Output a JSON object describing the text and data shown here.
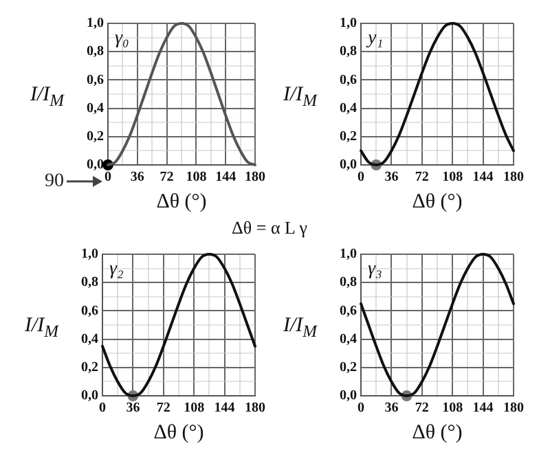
{
  "chart_data": [
    {
      "type": "line",
      "title": "γ₀",
      "xlabel": "Δθ (°)",
      "ylabel": "I/I$_{M}$",
      "x": [
        0,
        9,
        18,
        27,
        36,
        45,
        54,
        63,
        72,
        81,
        90,
        99,
        108,
        117,
        126,
        135,
        144,
        153,
        162,
        171,
        180
      ],
      "xlim": [
        0,
        180
      ],
      "ylim": [
        0,
        1
      ],
      "xticks": [
        0,
        {
          "value": 18,
          "label": null
        },
        36,
        {
          "value": 54,
          "label": null
        },
        72,
        {
          "value": 90,
          "label": null
        },
        108,
        {
          "value": 126,
          "label": null
        },
        144,
        {
          "value": 162,
          "label": null
        },
        180
      ],
      "yticks": [
        {
          "value": 0,
          "label": "0,0"
        },
        {
          "value": 0.1,
          "label": null
        },
        {
          "value": 0.2,
          "label": "0,2"
        },
        {
          "value": 0.3,
          "label": null
        },
        {
          "value": 0.4,
          "label": "0,4"
        },
        {
          "value": 0.5,
          "label": null
        },
        {
          "value": 0.6,
          "label": "0,6"
        },
        {
          "value": 0.7,
          "label": null
        },
        {
          "value": 0.8,
          "label": "0,8"
        },
        {
          "value": 0.9,
          "label": null
        },
        {
          "value": 1,
          "label": "1,0"
        }
      ],
      "grid": true,
      "annotations": [
        {
          "text": "90",
          "x": 0,
          "y": 0
        }
      ],
      "series": [
        {
          "color": "#555555",
          "values": [
            0,
            0.02,
            0.1,
            0.21,
            0.35,
            0.5,
            0.65,
            0.79,
            0.9,
            0.98,
            1,
            0.98,
            0.9,
            0.79,
            0.65,
            0.5,
            0.35,
            0.21,
            0.1,
            0.02,
            0
          ]
        },
        {
          "type": "scatter",
          "x": [
            0
          ],
          "values": [
            0
          ],
          "color": "#000000",
          "marker": "circle"
        }
      ]
    },
    {
      "type": "line",
      "title": "y₁",
      "xlabel": "Δθ (°)",
      "ylabel": "I/I$_{M}$",
      "x": [
        0,
        9,
        18,
        27,
        36,
        45,
        54,
        63,
        72,
        81,
        90,
        99,
        108,
        117,
        126,
        135,
        144,
        153,
        162,
        171,
        180
      ],
      "xlim": [
        0,
        180
      ],
      "ylim": [
        0,
        1
      ],
      "xticks": [
        0,
        {
          "value": 18,
          "label": null
        },
        36,
        {
          "value": 54,
          "label": null
        },
        72,
        {
          "value": 90,
          "label": null
        },
        108,
        {
          "value": 126,
          "label": null
        },
        144,
        {
          "value": 162,
          "label": null
        },
        180
      ],
      "yticks": [
        {
          "value": 0,
          "label": "0,0"
        },
        {
          "value": 0.1,
          "label": null
        },
        {
          "value": 0.2,
          "label": "0,2"
        },
        {
          "value": 0.3,
          "label": null
        },
        {
          "value": 0.4,
          "label": "0,4"
        },
        {
          "value": 0.5,
          "label": null
        },
        {
          "value": 0.6,
          "label": "0,6"
        },
        {
          "value": 0.7,
          "label": null
        },
        {
          "value": 0.8,
          "label": "0,8"
        },
        {
          "value": 0.9,
          "label": null
        },
        {
          "value": 1,
          "label": "1,0"
        }
      ],
      "grid": true,
      "series": [
        {
          "color": "#111111",
          "values": [
            0.1,
            0.02,
            0,
            0.02,
            0.1,
            0.21,
            0.35,
            0.5,
            0.65,
            0.79,
            0.9,
            0.98,
            1,
            0.98,
            0.9,
            0.79,
            0.65,
            0.5,
            0.35,
            0.21,
            0.1
          ]
        },
        {
          "type": "scatter",
          "x": [
            18
          ],
          "values": [
            0
          ],
          "color": "#777777",
          "marker": "circle"
        }
      ]
    },
    {
      "type": "line",
      "title": "γ₂",
      "xlabel": "Δθ (°)",
      "ylabel": "I/I$_{M}$",
      "x": [
        0,
        9,
        18,
        27,
        36,
        45,
        54,
        63,
        72,
        81,
        90,
        99,
        108,
        117,
        126,
        135,
        144,
        153,
        162,
        171,
        180
      ],
      "xlim": [
        0,
        180
      ],
      "ylim": [
        0,
        1
      ],
      "xticks": [
        0,
        {
          "value": 18,
          "label": null
        },
        36,
        {
          "value": 54,
          "label": null
        },
        72,
        {
          "value": 90,
          "label": null
        },
        108,
        {
          "value": 126,
          "label": null
        },
        144,
        {
          "value": 162,
          "label": null
        },
        180
      ],
      "yticks": [
        {
          "value": 0,
          "label": "0,0"
        },
        {
          "value": 0.1,
          "label": null
        },
        {
          "value": 0.2,
          "label": "0,2"
        },
        {
          "value": 0.3,
          "label": null
        },
        {
          "value": 0.4,
          "label": "0,4"
        },
        {
          "value": 0.5,
          "label": null
        },
        {
          "value": 0.6,
          "label": "0,6"
        },
        {
          "value": 0.7,
          "label": null
        },
        {
          "value": 0.8,
          "label": "0,8"
        },
        {
          "value": 0.9,
          "label": null
        },
        {
          "value": 1,
          "label": "1,0"
        }
      ],
      "grid": true,
      "series": [
        {
          "color": "#111111",
          "values": [
            0.35,
            0.21,
            0.1,
            0.02,
            0,
            0.02,
            0.1,
            0.21,
            0.35,
            0.5,
            0.65,
            0.79,
            0.9,
            0.98,
            1,
            0.98,
            0.9,
            0.79,
            0.65,
            0.5,
            0.35
          ]
        },
        {
          "type": "scatter",
          "x": [
            36
          ],
          "values": [
            0
          ],
          "color": "#777777",
          "marker": "circle"
        }
      ]
    },
    {
      "type": "line",
      "title": "γ₃",
      "xlabel": "Δθ (°)",
      "ylabel": "I/I$_{M}$",
      "x": [
        0,
        9,
        18,
        27,
        36,
        45,
        54,
        63,
        72,
        81,
        90,
        99,
        108,
        117,
        126,
        135,
        144,
        153,
        162,
        171,
        180
      ],
      "xlim": [
        0,
        180
      ],
      "ylim": [
        0,
        1
      ],
      "xticks": [
        0,
        {
          "value": 18,
          "label": null
        },
        36,
        {
          "value": 54,
          "label": null
        },
        72,
        {
          "value": 90,
          "label": null
        },
        108,
        {
          "value": 126,
          "label": null
        },
        144,
        {
          "value": 162,
          "label": null
        },
        180
      ],
      "yticks": [
        {
          "value": 0,
          "label": "0,0"
        },
        {
          "value": 0.1,
          "label": null
        },
        {
          "value": 0.2,
          "label": "0,2"
        },
        {
          "value": 0.3,
          "label": null
        },
        {
          "value": 0.4,
          "label": "0,4"
        },
        {
          "value": 0.5,
          "label": null
        },
        {
          "value": 0.6,
          "label": "0,6"
        },
        {
          "value": 0.7,
          "label": null
        },
        {
          "value": 0.8,
          "label": "0,8"
        },
        {
          "value": 0.9,
          "label": null
        },
        {
          "value": 1,
          "label": "1,0"
        }
      ],
      "grid": true,
      "series": [
        {
          "color": "#111111",
          "values": [
            0.65,
            0.5,
            0.35,
            0.21,
            0.1,
            0.02,
            0,
            0.02,
            0.1,
            0.21,
            0.35,
            0.5,
            0.65,
            0.79,
            0.9,
            0.98,
            1,
            0.98,
            0.9,
            0.79,
            0.65
          ]
        },
        {
          "type": "scatter",
          "x": [
            54
          ],
          "values": [
            0
          ],
          "color": "#777777",
          "marker": "circle"
        }
      ]
    },
    {
      "type": "other",
      "title": "Δθ = α L γ"
    }
  ]
}
